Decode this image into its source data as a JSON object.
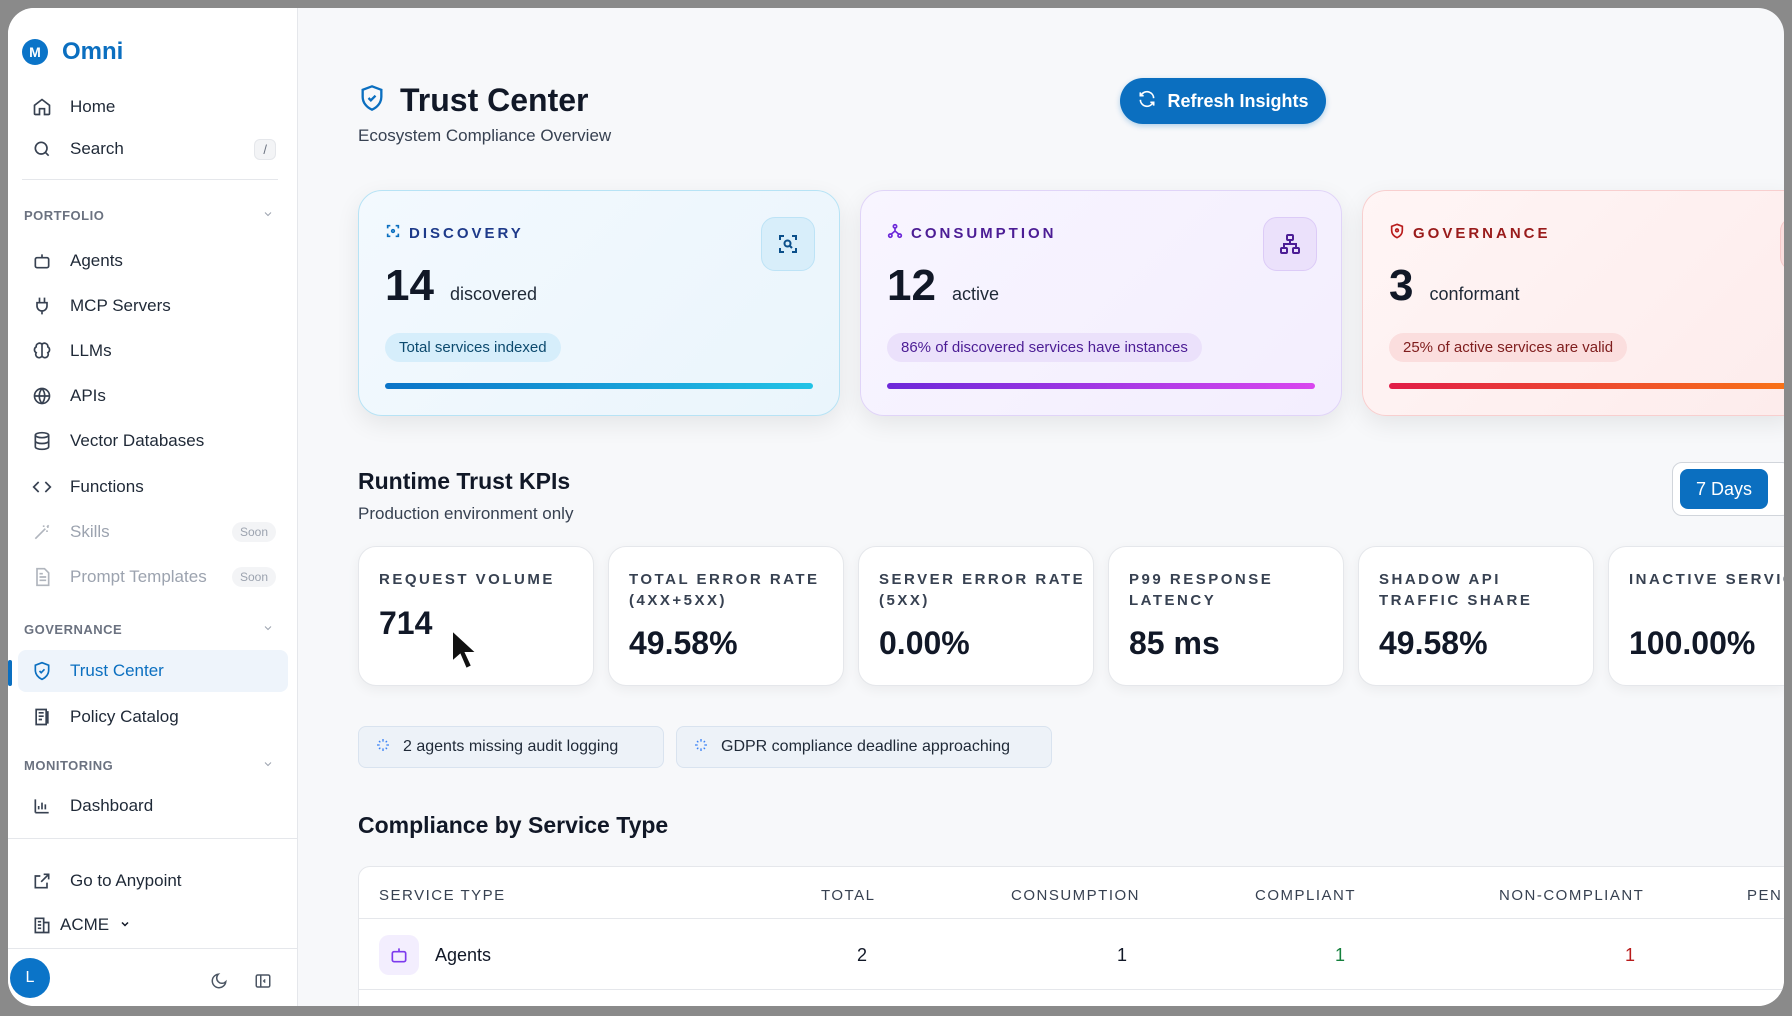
{
  "brand": {
    "logo_letter": "M",
    "name": "Omni"
  },
  "sidebar": {
    "top_items": [
      {
        "label": "Home",
        "icon": "home-icon"
      },
      {
        "label": "Search",
        "icon": "search-icon",
        "shortcut": "/"
      }
    ],
    "portfolio": {
      "heading": "PORTFOLIO",
      "items": [
        {
          "label": "Agents",
          "icon": "robot-icon"
        },
        {
          "label": "MCP Servers",
          "icon": "plug-icon"
        },
        {
          "label": "LLMs",
          "icon": "brain-icon"
        },
        {
          "label": "APIs",
          "icon": "globe-icon"
        },
        {
          "label": "Vector Databases",
          "icon": "database-icon"
        },
        {
          "label": "Functions",
          "icon": "code-icon"
        },
        {
          "label": "Skills",
          "icon": "wand-icon",
          "badge": "Soon"
        },
        {
          "label": "Prompt Templates",
          "icon": "document-icon",
          "badge": "Soon"
        }
      ]
    },
    "governance": {
      "heading": "GOVERNANCE",
      "items": [
        {
          "label": "Trust Center",
          "icon": "shield-check-icon",
          "active": true
        },
        {
          "label": "Policy Catalog",
          "icon": "catalog-icon"
        }
      ]
    },
    "monitoring": {
      "heading": "MONITORING",
      "items": [
        {
          "label": "Dashboard",
          "icon": "bar-chart-icon"
        }
      ]
    },
    "footer": {
      "anypoint_label": "Go to Anypoint",
      "org_label": "ACME",
      "avatar_letter": "L"
    }
  },
  "header": {
    "title": "Trust Center",
    "subtitle": "Ecosystem Compliance Overview",
    "refresh_label": "Refresh Insights"
  },
  "summary_cards": {
    "discovery": {
      "heading": "DISCOVERY",
      "value": "14",
      "unit": "discovered",
      "pill": "Total services indexed",
      "color": "#0b6fc0"
    },
    "consumption": {
      "heading": "CONSUMPTION",
      "value": "12",
      "unit": "active",
      "pill": "86% of discovered services have instances",
      "color": "#6d28d9"
    },
    "governance": {
      "heading": "GOVERNANCE",
      "value": "3",
      "unit": "conformant",
      "pill": "25% of active services are valid",
      "color": "#b91c1c"
    }
  },
  "kpis": {
    "title": "Runtime Trust KPIs",
    "subtitle": "Production environment only",
    "range_label": "7 Days",
    "items": [
      {
        "label": "REQUEST VOLUME",
        "value": "714"
      },
      {
        "label": "TOTAL ERROR RATE (4XX+5XX)",
        "value": "49.58%"
      },
      {
        "label": "SERVER ERROR RATE (5XX)",
        "value": "0.00%"
      },
      {
        "label": "P99 RESPONSE LATENCY",
        "value": "85 ms"
      },
      {
        "label": "SHADOW API TRAFFIC SHARE",
        "value": "49.58%"
      },
      {
        "label": "INACTIVE SERVICES",
        "value": "100.00%"
      }
    ]
  },
  "alerts": [
    {
      "text": "2 agents missing audit logging"
    },
    {
      "text": "GDPR compliance deadline approaching"
    }
  ],
  "compliance": {
    "title": "Compliance by Service Type",
    "headers": {
      "service_type": "SERVICE TYPE",
      "total": "TOTAL",
      "consumption": "CONSUMPTION",
      "compliant": "COMPLIANT",
      "non_compliant": "NON-COMPLIANT",
      "pending": "PEN"
    },
    "rows": [
      {
        "service_type": "Agents",
        "total": "2",
        "consumption": "1",
        "compliant": "1",
        "non_compliant": "1"
      }
    ],
    "colors": {
      "compliant": "#15803d",
      "non_compliant": "#b91c1c"
    }
  }
}
